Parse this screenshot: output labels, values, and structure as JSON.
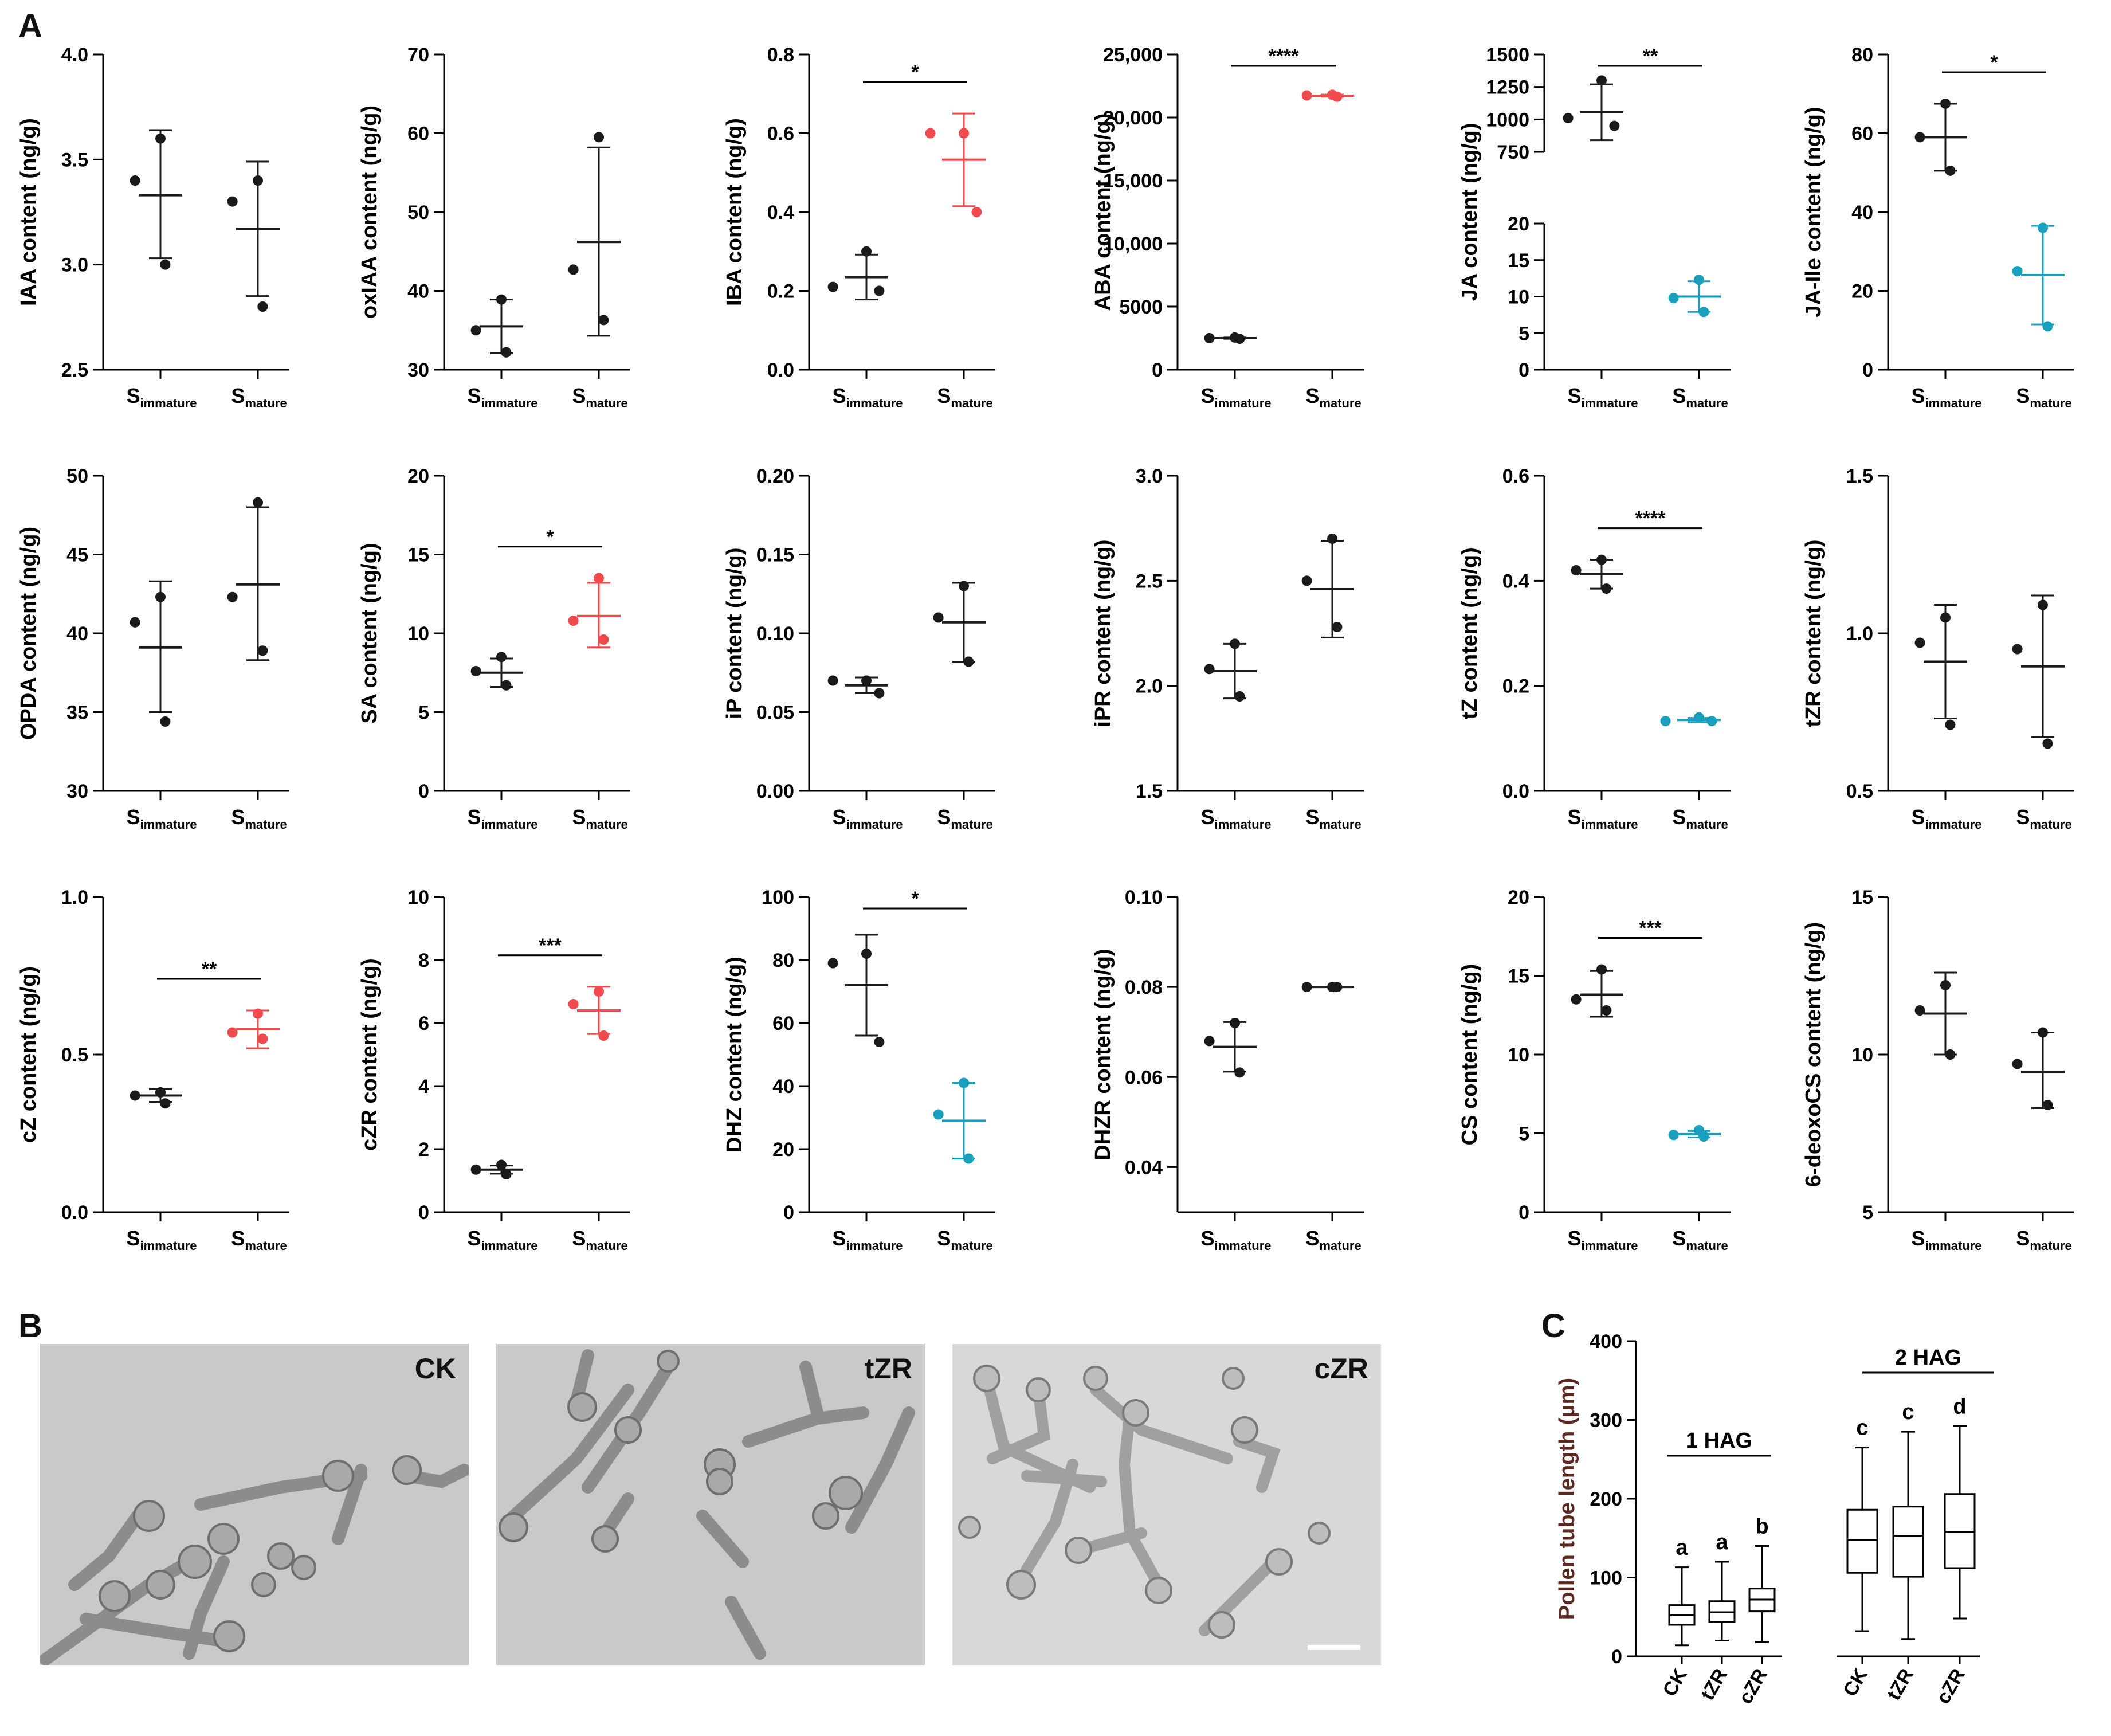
{
  "panel_letters": {
    "a": "A",
    "b": "B",
    "c": "C"
  },
  "colors": {
    "black": "#1a1a1a",
    "red": "#ef4a4e",
    "teal": "#1aa0bc",
    "axis_title_c": "#5a2a22"
  },
  "micrographs": [
    {
      "label": "CK"
    },
    {
      "label": "tZR"
    },
    {
      "label": "cZR"
    }
  ],
  "chart_data": [
    {
      "type": "scatter",
      "ylabel": "IAA content (ng/g)",
      "ylim": [
        2.5,
        4.0
      ],
      "yticks": [
        "2.5",
        "3.0",
        "3.5",
        "4.0"
      ],
      "tick_values": [
        2.5,
        3.0,
        3.5,
        4.0
      ],
      "groups": [
        {
          "label": "S",
          "sub": "immature",
          "color": "black",
          "points": [
            3.6,
            3.4,
            3.0
          ],
          "mean": 3.33,
          "sd_low": 3.03,
          "sd_high": 3.64
        },
        {
          "label": "S",
          "sub": "mature",
          "color": "black",
          "points": [
            3.4,
            3.3,
            2.8
          ],
          "mean": 3.17,
          "sd_low": 2.85,
          "sd_high": 3.49
        }
      ],
      "sig": ""
    },
    {
      "type": "scatter",
      "ylabel": "oxIAA content (ng/g)",
      "ylim": [
        30,
        70
      ],
      "yticks": [
        "30",
        "40",
        "50",
        "60",
        "70"
      ],
      "tick_values": [
        30,
        40,
        50,
        60,
        70
      ],
      "groups": [
        {
          "label": "S",
          "sub": "immature",
          "color": "black",
          "points": [
            38.9,
            35.0,
            32.2
          ],
          "mean": 35.5,
          "sd_low": 32.1,
          "sd_high": 38.9
        },
        {
          "label": "S",
          "sub": "mature",
          "color": "black",
          "points": [
            59.5,
            42.7,
            36.3
          ],
          "mean": 46.2,
          "sd_low": 34.3,
          "sd_high": 58.2
        }
      ],
      "sig": ""
    },
    {
      "type": "scatter",
      "ylabel": "IBA content (ng/g)",
      "ylim": [
        0,
        0.8
      ],
      "yticks": [
        "0.0",
        "0.2",
        "0.4",
        "0.6",
        "0.8"
      ],
      "tick_values": [
        0,
        0.2,
        0.4,
        0.6,
        0.8
      ],
      "groups": [
        {
          "label": "S",
          "sub": "immature",
          "color": "black",
          "points": [
            0.3,
            0.21,
            0.2
          ],
          "mean": 0.235,
          "sd_low": 0.178,
          "sd_high": 0.292
        },
        {
          "label": "S",
          "sub": "mature",
          "color": "red",
          "points": [
            0.6,
            0.6,
            0.4
          ],
          "mean": 0.533,
          "sd_low": 0.415,
          "sd_high": 0.65
        }
      ],
      "sig": "*"
    },
    {
      "type": "scatter",
      "ylabel": "ABA content (ng/g)",
      "ylim": [
        0,
        25000
      ],
      "yticks": [
        "0",
        "5000",
        "10,000",
        "15,000",
        "20,000",
        "25,000"
      ],
      "tick_values": [
        0,
        5000,
        10000,
        15000,
        20000,
        25000
      ],
      "groups": [
        {
          "label": "S",
          "sub": "immature",
          "color": "black",
          "points": [
            2550,
            2500,
            2450
          ],
          "mean": 2500,
          "sd_low": 2450,
          "sd_high": 2550
        },
        {
          "label": "S",
          "sub": "mature",
          "color": "red",
          "points": [
            21800,
            21750,
            21650
          ],
          "mean": 21730,
          "sd_low": 21650,
          "sd_high": 21810
        }
      ],
      "sig": "****"
    },
    {
      "type": "scatter",
      "ylabel": "JA content (ng/g)",
      "broken_axis": true,
      "yticks_low": [
        "0",
        "5",
        "10",
        "15",
        "20"
      ],
      "yticks_high": [
        "750",
        "1000",
        "1250",
        "1500"
      ],
      "groups": [
        {
          "label": "S",
          "sub": "immature",
          "color": "black",
          "points": [
            1300,
            1010,
            950
          ],
          "mean": 1055,
          "sd_low": 840,
          "sd_high": 1270
        },
        {
          "label": "S",
          "sub": "mature",
          "color": "teal",
          "points": [
            12.3,
            9.8,
            7.9
          ],
          "mean": 10.0,
          "sd_low": 7.9,
          "sd_high": 12.1
        }
      ],
      "sig": "**"
    },
    {
      "type": "scatter",
      "ylabel": "JA-Ile content (ng/g)",
      "ylim": [
        0,
        80
      ],
      "yticks": [
        "0",
        "20",
        "40",
        "60",
        "80"
      ],
      "tick_values": [
        0,
        20,
        40,
        60,
        80
      ],
      "groups": [
        {
          "label": "S",
          "sub": "immature",
          "color": "black",
          "points": [
            67.5,
            59.0,
            50.5
          ],
          "mean": 59.0,
          "sd_low": 50.5,
          "sd_high": 67.5
        },
        {
          "label": "S",
          "sub": "mature",
          "color": "teal",
          "points": [
            36.0,
            25.0,
            11.0
          ],
          "mean": 24.0,
          "sd_low": 11.5,
          "sd_high": 36.5
        }
      ],
      "sig": "*"
    },
    {
      "type": "scatter",
      "ylabel": "OPDA content (ng/g)",
      "ylim": [
        30,
        50
      ],
      "yticks": [
        "30",
        "35",
        "40",
        "45",
        "50"
      ],
      "tick_values": [
        30,
        35,
        40,
        45,
        50
      ],
      "groups": [
        {
          "label": "S",
          "sub": "immature",
          "color": "black",
          "points": [
            42.3,
            40.7,
            34.4
          ],
          "mean": 39.1,
          "sd_low": 35.0,
          "sd_high": 43.3
        },
        {
          "label": "S",
          "sub": "mature",
          "color": "black",
          "points": [
            48.3,
            42.3,
            38.9
          ],
          "mean": 43.1,
          "sd_low": 38.3,
          "sd_high": 48.0
        }
      ],
      "sig": ""
    },
    {
      "type": "scatter",
      "ylabel": "SA content (ng/g)",
      "ylim": [
        0,
        20
      ],
      "yticks": [
        "0",
        "5",
        "10",
        "15",
        "20"
      ],
      "tick_values": [
        0,
        5,
        10,
        15,
        20
      ],
      "groups": [
        {
          "label": "S",
          "sub": "immature",
          "color": "black",
          "points": [
            8.5,
            7.6,
            6.7
          ],
          "mean": 7.5,
          "sd_low": 6.6,
          "sd_high": 8.4
        },
        {
          "label": "S",
          "sub": "mature",
          "color": "red",
          "points": [
            13.5,
            10.8,
            9.6
          ],
          "mean": 11.1,
          "sd_low": 9.1,
          "sd_high": 13.2
        }
      ],
      "sig": "*"
    },
    {
      "type": "scatter",
      "ylabel": "iP content (ng/g)",
      "ylim": [
        0,
        0.2
      ],
      "yticks": [
        "0.00",
        "0.05",
        "0.10",
        "0.15",
        "0.20"
      ],
      "tick_values": [
        0,
        0.05,
        0.1,
        0.15,
        0.2
      ],
      "groups": [
        {
          "label": "S",
          "sub": "immature",
          "color": "black",
          "points": [
            0.07,
            0.07,
            0.062
          ],
          "mean": 0.067,
          "sd_low": 0.062,
          "sd_high": 0.072
        },
        {
          "label": "S",
          "sub": "mature",
          "color": "black",
          "points": [
            0.13,
            0.11,
            0.082
          ],
          "mean": 0.107,
          "sd_low": 0.082,
          "sd_high": 0.132
        }
      ],
      "sig": ""
    },
    {
      "type": "scatter",
      "ylabel": "iPR content (ng/g)",
      "ylim": [
        1.5,
        3.0
      ],
      "yticks": [
        "1.5",
        "2.0",
        "2.5",
        "3.0"
      ],
      "tick_values": [
        1.5,
        2.0,
        2.5,
        3.0
      ],
      "groups": [
        {
          "label": "S",
          "sub": "immature",
          "color": "black",
          "points": [
            2.2,
            2.08,
            1.95
          ],
          "mean": 2.07,
          "sd_low": 1.94,
          "sd_high": 2.2
        },
        {
          "label": "S",
          "sub": "mature",
          "color": "black",
          "points": [
            2.7,
            2.5,
            2.28
          ],
          "mean": 2.46,
          "sd_low": 2.23,
          "sd_high": 2.69
        }
      ],
      "sig": ""
    },
    {
      "type": "scatter",
      "ylabel": "tZ content (ng/g)",
      "ylim": [
        0,
        0.6
      ],
      "yticks": [
        "0.0",
        "0.2",
        "0.4",
        "0.6"
      ],
      "tick_values": [
        0,
        0.2,
        0.4,
        0.6
      ],
      "groups": [
        {
          "label": "S",
          "sub": "immature",
          "color": "black",
          "points": [
            0.44,
            0.42,
            0.385
          ],
          "mean": 0.413,
          "sd_low": 0.385,
          "sd_high": 0.44
        },
        {
          "label": "S",
          "sub": "mature",
          "color": "teal",
          "points": [
            0.14,
            0.133,
            0.133
          ],
          "mean": 0.135,
          "sd_low": 0.131,
          "sd_high": 0.139
        }
      ],
      "sig": "****"
    },
    {
      "type": "scatter",
      "ylabel": "tZR content (ng/g)",
      "ylim": [
        0.5,
        1.5
      ],
      "yticks": [
        "0.5",
        "1.0",
        "1.5"
      ],
      "tick_values": [
        0.5,
        1.0,
        1.5
      ],
      "groups": [
        {
          "label": "S",
          "sub": "immature",
          "color": "black",
          "points": [
            1.05,
            0.97,
            0.71
          ],
          "mean": 0.91,
          "sd_low": 0.73,
          "sd_high": 1.09
        },
        {
          "label": "S",
          "sub": "mature",
          "color": "black",
          "points": [
            1.09,
            0.95,
            0.65
          ],
          "mean": 0.895,
          "sd_low": 0.67,
          "sd_high": 1.12
        }
      ],
      "sig": ""
    },
    {
      "type": "scatter",
      "ylabel": "cZ content (ng/g)",
      "ylim": [
        0,
        1.0
      ],
      "yticks": [
        "0.0",
        "0.5",
        "1.0"
      ],
      "tick_values": [
        0,
        0.5,
        1.0
      ],
      "groups": [
        {
          "label": "S",
          "sub": "immature",
          "color": "black",
          "points": [
            0.38,
            0.37,
            0.345
          ],
          "mean": 0.37,
          "sd_low": 0.35,
          "sd_high": 0.39
        },
        {
          "label": "S",
          "sub": "mature",
          "color": "red",
          "points": [
            0.63,
            0.57,
            0.55
          ],
          "mean": 0.58,
          "sd_low": 0.52,
          "sd_high": 0.64
        }
      ],
      "sig": "**"
    },
    {
      "type": "scatter",
      "ylabel": "cZR content (ng/g)",
      "ylim": [
        0,
        10
      ],
      "yticks": [
        "0",
        "2",
        "4",
        "6",
        "8",
        "10"
      ],
      "tick_values": [
        0,
        2,
        4,
        6,
        8,
        10
      ],
      "groups": [
        {
          "label": "S",
          "sub": "immature",
          "color": "black",
          "points": [
            1.5,
            1.35,
            1.2
          ],
          "mean": 1.35,
          "sd_low": 1.22,
          "sd_high": 1.48
        },
        {
          "label": "S",
          "sub": "mature",
          "color": "red",
          "points": [
            7.0,
            6.6,
            5.6
          ],
          "mean": 6.4,
          "sd_low": 5.65,
          "sd_high": 7.15
        }
      ],
      "sig": "***"
    },
    {
      "type": "scatter",
      "ylabel": "DHZ content (ng/g)",
      "ylim": [
        0,
        100
      ],
      "yticks": [
        "0",
        "20",
        "40",
        "60",
        "80",
        "100"
      ],
      "tick_values": [
        0,
        20,
        40,
        60,
        80,
        100
      ],
      "groups": [
        {
          "label": "S",
          "sub": "immature",
          "color": "black",
          "points": [
            82,
            79,
            54
          ],
          "mean": 72,
          "sd_low": 56,
          "sd_high": 88
        },
        {
          "label": "S",
          "sub": "mature",
          "color": "teal",
          "points": [
            41,
            31,
            17
          ],
          "mean": 29,
          "sd_low": 17,
          "sd_high": 41
        }
      ],
      "sig": "*"
    },
    {
      "type": "scatter",
      "ylabel": "DHZR content (ng/g)",
      "ylim": [
        0.03,
        0.1
      ],
      "yticks": [
        "0.04",
        "0.06",
        "0.08",
        "0.10"
      ],
      "tick_values": [
        0.04,
        0.06,
        0.08,
        0.1
      ],
      "groups": [
        {
          "label": "S",
          "sub": "immature",
          "color": "black",
          "points": [
            0.072,
            0.068,
            0.061
          ],
          "mean": 0.0667,
          "sd_low": 0.0612,
          "sd_high": 0.0722
        },
        {
          "label": "S",
          "sub": "mature",
          "color": "black",
          "points": [
            0.08,
            0.08,
            0.08
          ],
          "mean": 0.08,
          "sd_low": 0.08,
          "sd_high": 0.08
        }
      ],
      "sig": ""
    },
    {
      "type": "scatter",
      "ylabel": "CS content (ng/g)",
      "ylim": [
        0,
        20
      ],
      "yticks": [
        "0",
        "5",
        "10",
        "15",
        "20"
      ],
      "tick_values": [
        0,
        5,
        10,
        15,
        20
      ],
      "groups": [
        {
          "label": "S",
          "sub": "immature",
          "color": "black",
          "points": [
            15.4,
            13.5,
            12.8
          ],
          "mean": 13.8,
          "sd_low": 12.4,
          "sd_high": 15.3
        },
        {
          "label": "S",
          "sub": "mature",
          "color": "teal",
          "points": [
            5.2,
            4.9,
            4.8
          ],
          "mean": 4.95,
          "sd_low": 4.75,
          "sd_high": 5.15
        }
      ],
      "sig": "***"
    },
    {
      "type": "scatter",
      "ylabel": "6-deoxoCS content (ng/g)",
      "ylim": [
        5,
        15
      ],
      "yticks": [
        "5",
        "10",
        "15"
      ],
      "tick_values": [
        5,
        10,
        15
      ],
      "groups": [
        {
          "label": "S",
          "sub": "immature",
          "color": "black",
          "points": [
            12.2,
            11.4,
            10.0
          ],
          "mean": 11.3,
          "sd_low": 10.0,
          "sd_high": 12.6
        },
        {
          "label": "S",
          "sub": "mature",
          "color": "black",
          "points": [
            10.7,
            9.7,
            8.4
          ],
          "mean": 9.45,
          "sd_low": 8.3,
          "sd_high": 10.7
        }
      ],
      "sig": ""
    },
    {
      "type": "box",
      "ylabel": "Pollen tube length (μm)",
      "ylim": [
        0,
        400
      ],
      "yticks": [
        "0",
        "100",
        "200",
        "300",
        "400"
      ],
      "tick_values": [
        0,
        100,
        200,
        300,
        400
      ],
      "group_labels": [
        "1 HAG",
        "2 HAG"
      ],
      "boxes": [
        {
          "category": "CK",
          "group": 0,
          "min": 14,
          "q1": 40,
          "median": 52,
          "q3": 65,
          "max": 113,
          "letter": "a"
        },
        {
          "category": "tZR",
          "group": 0,
          "min": 20,
          "q1": 44,
          "median": 56,
          "q3": 70,
          "max": 120,
          "letter": "a"
        },
        {
          "category": "cZR",
          "group": 0,
          "min": 18,
          "q1": 57,
          "median": 72,
          "q3": 86,
          "max": 140,
          "letter": "b"
        },
        {
          "category": "CK",
          "group": 1,
          "min": 32,
          "q1": 106,
          "median": 148,
          "q3": 186,
          "max": 265,
          "letter": "c"
        },
        {
          "category": "tZR",
          "group": 1,
          "min": 22,
          "q1": 101,
          "median": 153,
          "q3": 190,
          "max": 285,
          "letter": "c"
        },
        {
          "category": "cZR",
          "group": 1,
          "min": 48,
          "q1": 112,
          "median": 158,
          "q3": 206,
          "max": 292,
          "letter": "d"
        }
      ]
    }
  ]
}
